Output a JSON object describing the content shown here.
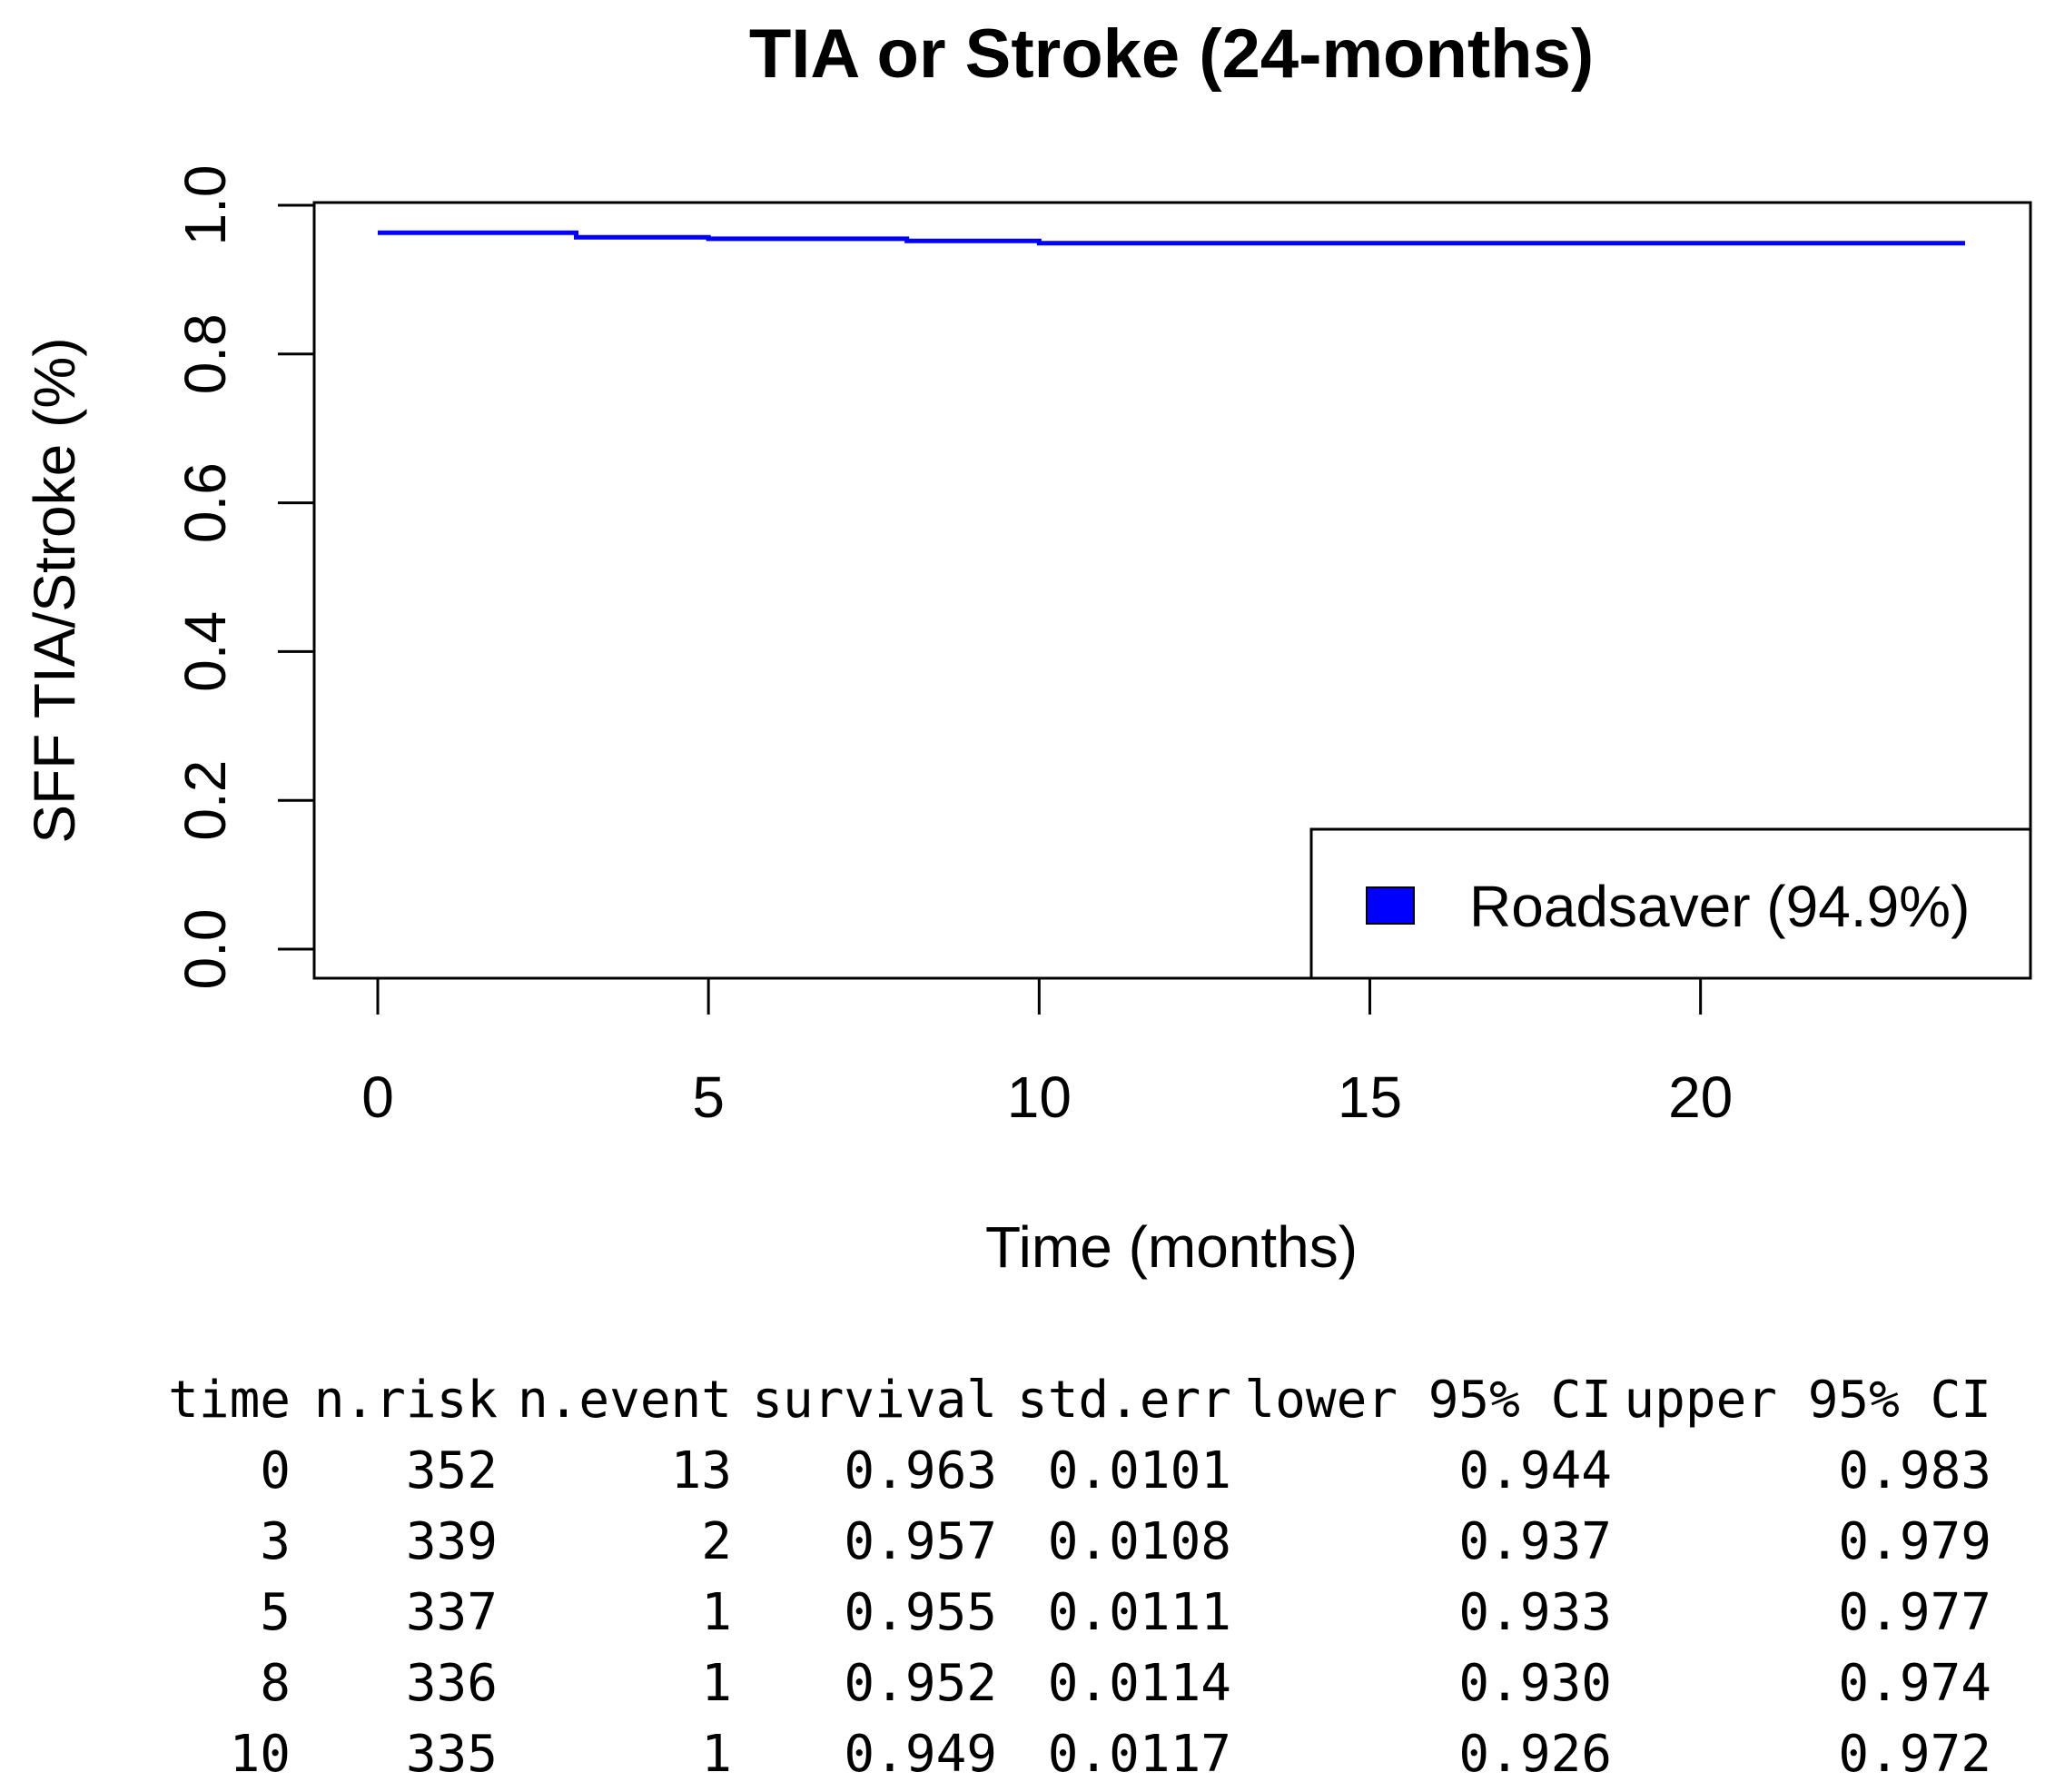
{
  "chart_data": {
    "type": "line",
    "title": "TIA or Stroke (24-months)",
    "xlabel": "Time (months)",
    "ylabel": "SFF TIA/Stroke (%)",
    "xlim": [
      0,
      24
    ],
    "ylim": [
      0,
      1.0
    ],
    "x_ticks": [
      0,
      5,
      10,
      15,
      20
    ],
    "y_ticks": [
      0.0,
      0.2,
      0.4,
      0.6,
      0.8,
      1.0
    ],
    "x_tick_labels": [
      "0",
      "5",
      "10",
      "15",
      "20"
    ],
    "y_tick_labels": [
      "0.0",
      "0.2",
      "0.4",
      "0.6",
      "0.8",
      "1.0"
    ],
    "legend": {
      "position": "bottom-right",
      "entries": [
        {
          "label": "Roadsaver (94.9%)",
          "color": "#0000ff"
        }
      ]
    },
    "series": [
      {
        "name": "Roadsaver (94.9%)",
        "color": "#0000ff",
        "step": true,
        "x": [
          0,
          3,
          5,
          8,
          10,
          24
        ],
        "y": [
          0.963,
          0.957,
          0.955,
          0.952,
          0.949,
          0.949
        ]
      }
    ]
  },
  "table": {
    "headers": [
      "time",
      "n.risk",
      "n.event",
      "survival",
      "std.err",
      "lower 95% CI",
      "upper 95% CI"
    ],
    "rows": [
      [
        "0",
        "352",
        "13",
        "0.963",
        "0.0101",
        "0.944",
        "0.983"
      ],
      [
        "3",
        "339",
        "2",
        "0.957",
        "0.0108",
        "0.937",
        "0.979"
      ],
      [
        "5",
        "337",
        "1",
        "0.955",
        "0.0111",
        "0.933",
        "0.977"
      ],
      [
        "8",
        "336",
        "1",
        "0.952",
        "0.0114",
        "0.930",
        "0.974"
      ],
      [
        "10",
        "335",
        "1",
        "0.949",
        "0.0117",
        "0.926",
        "0.972"
      ]
    ]
  }
}
